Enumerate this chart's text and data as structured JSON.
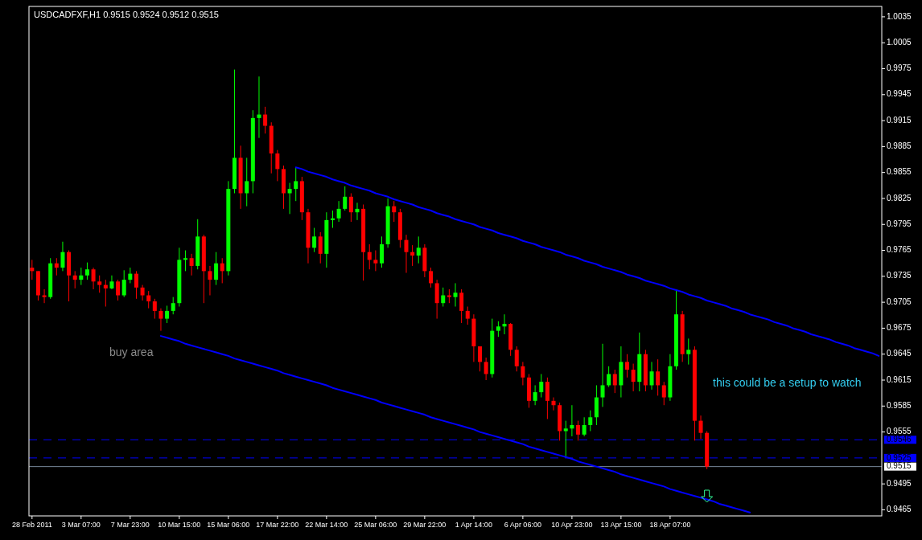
{
  "chart_data": {
    "type": "candlestick",
    "title": "USDCADFXF,H1 0.9515 0.9524 0.9512 0.9515",
    "categories": [
      "28 Feb 2011",
      null,
      null,
      null,
      null,
      null,
      null,
      null,
      "3 Mar 07:00",
      null,
      null,
      null,
      null,
      null,
      null,
      null,
      "7 Mar 23:00",
      null,
      null,
      null,
      null,
      null,
      null,
      null,
      "10 Mar 15:00",
      null,
      null,
      null,
      null,
      null,
      null,
      null,
      "15 Mar 06:00",
      null,
      null,
      null,
      null,
      null,
      null,
      null,
      "17 Mar 22:00",
      null,
      null,
      null,
      null,
      null,
      null,
      null,
      "22 Mar 14:00",
      null,
      null,
      null,
      null,
      null,
      null,
      null,
      "25 Mar 06:00",
      null,
      null,
      null,
      null,
      null,
      null,
      null,
      "29 Mar 22:00",
      null,
      null,
      null,
      null,
      null,
      null,
      null,
      "1 Apr 14:00",
      null,
      null,
      null,
      null,
      null,
      null,
      null,
      "6 Apr 06:00",
      null,
      null,
      null,
      null,
      null,
      null,
      null,
      "10 Apr 23:00",
      null,
      null,
      null,
      null,
      null,
      null,
      null,
      "13 Apr 15:00",
      null,
      null,
      null,
      null,
      null,
      null,
      null,
      "18 Apr 07:00",
      null,
      null,
      null,
      null,
      null,
      null,
      null,
      null,
      null,
      null,
      null,
      null,
      null,
      null,
      null,
      null,
      null,
      null,
      null,
      null,
      null,
      null,
      null,
      null,
      null,
      null,
      null,
      null,
      null,
      null,
      null,
      null,
      null,
      null
    ],
    "ohlc": [
      [
        0.9745,
        0.9754,
        0.9731,
        0.9741
      ],
      [
        0.9741,
        0.9741,
        0.9707,
        0.9713
      ],
      [
        0.9713,
        0.972,
        0.9704,
        0.9711
      ],
      [
        0.9711,
        0.9756,
        0.9709,
        0.975
      ],
      [
        0.975,
        0.9756,
        0.9736,
        0.9745
      ],
      [
        0.9745,
        0.9775,
        0.9741,
        0.9763
      ],
      [
        0.9763,
        0.9765,
        0.9706,
        0.9736
      ],
      [
        0.9736,
        0.9741,
        0.9721,
        0.9731
      ],
      [
        0.9731,
        0.9745,
        0.9725,
        0.9736
      ],
      [
        0.9736,
        0.9751,
        0.9731,
        0.9743
      ],
      [
        0.9743,
        0.9745,
        0.972,
        0.9729
      ],
      [
        0.9729,
        0.9736,
        0.9716,
        0.9725
      ],
      [
        0.9725,
        0.9731,
        0.97,
        0.9721
      ],
      [
        0.9721,
        0.9736,
        0.972,
        0.9729
      ],
      [
        0.9729,
        0.9731,
        0.9707,
        0.9713
      ],
      [
        0.9713,
        0.9742,
        0.9711,
        0.9731
      ],
      [
        0.9731,
        0.9745,
        0.9727,
        0.9738
      ],
      [
        0.9738,
        0.9741,
        0.9709,
        0.9722
      ],
      [
        0.9722,
        0.9725,
        0.9707,
        0.9713
      ],
      [
        0.9713,
        0.9718,
        0.9698,
        0.9706
      ],
      [
        0.9706,
        0.9709,
        0.9686,
        0.9695
      ],
      [
        0.9695,
        0.9698,
        0.9672,
        0.9686
      ],
      [
        0.9686,
        0.9701,
        0.9681,
        0.9695
      ],
      [
        0.9695,
        0.9711,
        0.9691,
        0.9704
      ],
      [
        0.9704,
        0.9768,
        0.97,
        0.9754
      ],
      [
        0.9754,
        0.9765,
        0.9741,
        0.9756
      ],
      [
        0.9756,
        0.9761,
        0.9736,
        0.9747
      ],
      [
        0.9747,
        0.9801,
        0.9743,
        0.9781
      ],
      [
        0.9781,
        0.9783,
        0.9704,
        0.9741
      ],
      [
        0.9741,
        0.9747,
        0.9713,
        0.9731
      ],
      [
        0.9731,
        0.9763,
        0.9725,
        0.975
      ],
      [
        0.975,
        0.9756,
        0.9727,
        0.9741
      ],
      [
        0.9741,
        0.9845,
        0.9736,
        0.9836
      ],
      [
        0.9836,
        0.9974,
        0.9831,
        0.9872
      ],
      [
        0.9872,
        0.9886,
        0.9813,
        0.9831
      ],
      [
        0.9831,
        0.9872,
        0.9816,
        0.9845
      ],
      [
        0.9845,
        0.9927,
        0.9831,
        0.9918
      ],
      [
        0.9918,
        0.9966,
        0.9895,
        0.9922
      ],
      [
        0.9922,
        0.9931,
        0.99,
        0.9909
      ],
      [
        0.9909,
        0.9913,
        0.9854,
        0.9877
      ],
      [
        0.9877,
        0.9881,
        0.9845,
        0.9859
      ],
      [
        0.9859,
        0.9863,
        0.9813,
        0.9831
      ],
      [
        0.9831,
        0.9843,
        0.9807,
        0.9836
      ],
      [
        0.9836,
        0.9861,
        0.9822,
        0.9845
      ],
      [
        0.9845,
        0.985,
        0.98,
        0.9809
      ],
      [
        0.9809,
        0.9813,
        0.975,
        0.9768
      ],
      [
        0.9768,
        0.9791,
        0.9763,
        0.9781
      ],
      [
        0.9781,
        0.9786,
        0.975,
        0.9761
      ],
      [
        0.9761,
        0.9809,
        0.9745,
        0.98
      ],
      [
        0.98,
        0.9811,
        0.9791,
        0.9802
      ],
      [
        0.9802,
        0.9822,
        0.9798,
        0.9813
      ],
      [
        0.9813,
        0.9839,
        0.9811,
        0.9827
      ],
      [
        0.9827,
        0.9831,
        0.9798,
        0.9809
      ],
      [
        0.9809,
        0.982,
        0.98,
        0.9813
      ],
      [
        0.9813,
        0.9818,
        0.973,
        0.9763
      ],
      [
        0.9763,
        0.9772,
        0.9743,
        0.9754
      ],
      [
        0.9754,
        0.9765,
        0.9741,
        0.975
      ],
      [
        0.975,
        0.9781,
        0.9745,
        0.9772
      ],
      [
        0.9772,
        0.9825,
        0.9768,
        0.9816
      ],
      [
        0.9816,
        0.9822,
        0.9798,
        0.9809
      ],
      [
        0.9809,
        0.9813,
        0.9768,
        0.9777
      ],
      [
        0.9777,
        0.9783,
        0.9739,
        0.9763
      ],
      [
        0.9763,
        0.9771,
        0.9747,
        0.9759
      ],
      [
        0.9759,
        0.9781,
        0.975,
        0.9768
      ],
      [
        0.9768,
        0.9772,
        0.9734,
        0.9741
      ],
      [
        0.9741,
        0.9745,
        0.9722,
        0.9727
      ],
      [
        0.9727,
        0.9731,
        0.9686,
        0.9704
      ],
      [
        0.9704,
        0.9722,
        0.97,
        0.9713
      ],
      [
        0.9713,
        0.972,
        0.9704,
        0.9711
      ],
      [
        0.9711,
        0.9727,
        0.97,
        0.9716
      ],
      [
        0.9716,
        0.972,
        0.9681,
        0.9695
      ],
      [
        0.9695,
        0.97,
        0.9679,
        0.9686
      ],
      [
        0.9686,
        0.9691,
        0.9636,
        0.9654
      ],
      [
        0.9654,
        0.9654,
        0.9625,
        0.9636
      ],
      [
        0.9636,
        0.9641,
        0.9615,
        0.9622
      ],
      [
        0.9622,
        0.9686,
        0.9618,
        0.9672
      ],
      [
        0.9672,
        0.9683,
        0.9665,
        0.9677
      ],
      [
        0.9677,
        0.9691,
        0.9668,
        0.968
      ],
      [
        0.968,
        0.9681,
        0.9643,
        0.965
      ],
      [
        0.965,
        0.9654,
        0.9625,
        0.9631
      ],
      [
        0.9631,
        0.9636,
        0.9609,
        0.9618
      ],
      [
        0.9618,
        0.9622,
        0.9583,
        0.9591
      ],
      [
        0.9591,
        0.9609,
        0.9586,
        0.9601
      ],
      [
        0.9601,
        0.9622,
        0.9595,
        0.9613
      ],
      [
        0.9613,
        0.9618,
        0.957,
        0.9591
      ],
      [
        0.9591,
        0.9595,
        0.958,
        0.9586
      ],
      [
        0.9586,
        0.9589,
        0.9545,
        0.9556
      ],
      [
        0.9556,
        0.9568,
        0.9525,
        0.9559
      ],
      [
        0.9559,
        0.9586,
        0.955,
        0.9563
      ],
      [
        0.9563,
        0.9568,
        0.9545,
        0.9552
      ],
      [
        0.9552,
        0.9572,
        0.955,
        0.9563
      ],
      [
        0.9563,
        0.958,
        0.9556,
        0.9572
      ],
      [
        0.9572,
        0.9609,
        0.9563,
        0.9595
      ],
      [
        0.9595,
        0.9657,
        0.9584,
        0.9609
      ],
      [
        0.9609,
        0.9631,
        0.9607,
        0.9622
      ],
      [
        0.9622,
        0.9627,
        0.96,
        0.9609
      ],
      [
        0.9609,
        0.9654,
        0.9595,
        0.9636
      ],
      [
        0.9636,
        0.9645,
        0.9618,
        0.9627
      ],
      [
        0.9627,
        0.9634,
        0.9602,
        0.9613
      ],
      [
        0.9613,
        0.967,
        0.9602,
        0.9645
      ],
      [
        0.9645,
        0.965,
        0.9602,
        0.9609
      ],
      [
        0.9609,
        0.9636,
        0.9604,
        0.9625
      ],
      [
        0.9625,
        0.9639,
        0.9597,
        0.9609
      ],
      [
        0.9609,
        0.9613,
        0.9586,
        0.9595
      ],
      [
        0.9595,
        0.9645,
        0.9591,
        0.9631
      ],
      [
        0.9631,
        0.972,
        0.9627,
        0.9691
      ],
      [
        0.9691,
        0.9695,
        0.9636,
        0.9645
      ],
      [
        0.9645,
        0.9663,
        0.9633,
        0.965
      ],
      [
        0.965,
        0.9654,
        0.9545,
        0.9568
      ],
      [
        0.9568,
        0.9574,
        0.9547,
        0.9554
      ],
      [
        0.9554,
        0.9556,
        0.9512,
        0.9515
      ],
      null,
      null,
      null,
      null,
      null,
      null,
      null,
      null,
      null,
      null,
      null,
      null,
      null,
      null,
      null,
      null,
      null,
      null,
      null,
      null,
      null,
      null,
      null,
      null,
      null,
      null,
      null,
      null
    ],
    "colors": [
      "#ff0000",
      "#ff0000",
      "#ff0000",
      "#00ff00",
      "#ff0000",
      "#00ff00",
      "#ff0000",
      "#ff0000",
      "#00ff00",
      "#00ff00",
      "#ff0000",
      "#ff0000",
      "#ff0000",
      "#00ff00",
      "#ff0000",
      "#00ff00",
      "#00ff00",
      "#ff0000",
      "#ff0000",
      "#ff0000",
      "#ff0000",
      "#ff0000",
      "#00ff00",
      "#00ff00",
      "#00ff00",
      "#00ff00",
      "#ff0000",
      "#00ff00",
      "#ff0000",
      "#ff0000",
      "#00ff00",
      "#ff0000",
      "#00ff00",
      "#00ff00",
      "#ff0000",
      "#00ff00",
      "#00ff00",
      "#00ff00",
      "#ff0000",
      "#ff0000",
      "#ff0000",
      "#ff0000",
      "#00ff00",
      "#00ff00",
      "#ff0000",
      "#ff0000",
      "#00ff00",
      "#ff0000",
      "#00ff00",
      "#00ff00",
      "#00ff00",
      "#00ff00",
      "#ff0000",
      "#00ff00",
      "#ff0000",
      "#ff0000",
      "#ff0000",
      "#00ff00",
      "#00ff00",
      "#ff0000",
      "#ff0000",
      "#ff0000",
      "#ff0000",
      "#00ff00",
      "#ff0000",
      "#ff0000",
      "#ff0000",
      "#00ff00",
      "#ff0000",
      "#00ff00",
      "#ff0000",
      "#ff0000",
      "#ff0000",
      "#ff0000",
      "#ff0000",
      "#00ff00",
      "#00ff00",
      "#00ff00",
      "#ff0000",
      "#ff0000",
      "#ff0000",
      "#ff0000",
      "#00ff00",
      "#00ff00",
      "#ff0000",
      "#ff0000",
      "#ff0000",
      "#00ff00",
      "#00ff00",
      "#ff0000",
      "#00ff00",
      "#00ff00",
      "#00ff00",
      "#00ff00",
      "#00ff00",
      "#ff0000",
      "#00ff00",
      "#ff0000",
      "#ff0000",
      "#00ff00",
      "#ff0000",
      "#00ff00",
      "#ff0000",
      "#ff0000",
      "#00ff00",
      "#00ff00",
      "#ff0000",
      "#00ff00",
      "#ff0000",
      "#ff0000",
      "#ff0000",
      null,
      null,
      null,
      null,
      null,
      null,
      null,
      null,
      null,
      null,
      null,
      null,
      null,
      null,
      null,
      null,
      null,
      null,
      null,
      null,
      null,
      null,
      null,
      null,
      null,
      null,
      null,
      null
    ],
    "series": [
      {
        "type": "line",
        "color": "#0000ff",
        "values": [
          null,
          null,
          null,
          null,
          null,
          null,
          null,
          null,
          null,
          null,
          null,
          null,
          null,
          null,
          null,
          null,
          null,
          null,
          null,
          null,
          null,
          null,
          null,
          null,
          null,
          null,
          null,
          null,
          null,
          null,
          null,
          null,
          null,
          null,
          null,
          null,
          null,
          null,
          null,
          null,
          null,
          null,
          null,
          0.9861,
          0.9859,
          0.9856,
          0.9854,
          0.9852,
          0.985,
          0.9847,
          0.9845,
          0.9843,
          0.984,
          0.9838,
          0.9836,
          0.9834,
          0.9831,
          0.9829,
          0.9827,
          0.9824,
          0.9822,
          0.982,
          0.9818,
          0.9815,
          0.9813,
          0.9811,
          0.9808,
          0.9806,
          0.9804,
          0.9801,
          0.9799,
          0.9797,
          0.9795,
          0.9792,
          0.979,
          0.9788,
          0.9785,
          0.9783,
          0.9781,
          0.9779,
          0.9776,
          0.9774,
          0.9772,
          0.9769,
          0.9767,
          0.9765,
          0.9763,
          0.976,
          0.9758,
          0.9756,
          0.9753,
          0.9751,
          0.9749,
          0.9746,
          0.9744,
          0.9742,
          0.974,
          0.9737,
          0.9735,
          0.9733,
          0.973,
          0.9728,
          0.9726,
          0.9724,
          0.9721,
          0.9719,
          0.9717,
          0.9714,
          0.9712,
          0.971,
          0.9707,
          0.9705,
          0.9703,
          0.9701,
          0.9698,
          0.9696,
          0.9694,
          0.9691,
          0.9689,
          0.9687,
          0.9685,
          0.9682,
          0.968,
          0.9678,
          0.9675,
          0.9673,
          0.9671,
          0.9668,
          0.9666,
          0.9664,
          0.9662,
          0.9659,
          0.9657,
          0.9655,
          0.9652,
          0.965,
          0.9648,
          0.9646,
          0.9643
        ]
      },
      {
        "type": "line",
        "color": "#0000ff",
        "values": [
          null,
          null,
          null,
          null,
          null,
          null,
          null,
          null,
          null,
          null,
          null,
          null,
          null,
          null,
          null,
          null,
          null,
          null,
          null,
          null,
          null,
          0.9666,
          0.9664,
          0.9662,
          0.966,
          0.9657,
          0.9655,
          0.9653,
          0.9651,
          0.9649,
          0.9647,
          0.9645,
          0.9643,
          0.964,
          0.9638,
          0.9636,
          0.9634,
          0.9632,
          0.963,
          0.9628,
          0.9626,
          0.9623,
          0.9621,
          0.9619,
          0.9617,
          0.9615,
          0.9613,
          0.9611,
          0.9609,
          0.9606,
          0.9604,
          0.9602,
          0.96,
          0.9598,
          0.9596,
          0.9594,
          0.9592,
          0.9589,
          0.9587,
          0.9585,
          0.9583,
          0.9581,
          0.9579,
          0.9577,
          0.9575,
          0.9572,
          0.957,
          0.9568,
          0.9566,
          0.9564,
          0.9562,
          0.956,
          0.9558,
          0.9555,
          0.9553,
          0.9551,
          0.9549,
          0.9547,
          0.9545,
          0.9543,
          0.9541,
          0.9538,
          0.9536,
          0.9534,
          0.9532,
          0.953,
          0.9528,
          0.9526,
          0.9524,
          0.9521,
          0.9519,
          0.9517,
          0.9515,
          0.9513,
          0.9511,
          0.9509,
          0.9506,
          0.9504,
          0.9502,
          0.95,
          0.9498,
          0.9496,
          0.9494,
          0.9492,
          0.9489,
          0.9487,
          0.9485,
          0.9483,
          0.9481,
          0.9479,
          0.9477,
          0.9475,
          0.9472,
          0.947,
          0.9468,
          0.9466,
          0.9464,
          0.9462,
          null,
          null,
          null,
          null,
          null,
          null,
          null,
          null,
          null,
          null,
          null,
          null,
          null,
          null,
          null,
          null,
          null,
          null,
          null,
          null,
          null
        ]
      }
    ],
    "ylim": [
      0.9458,
      1.0047
    ],
    "yticks": [
      0.9465,
      0.9495,
      0.9555,
      0.9585,
      0.9615,
      0.9645,
      0.9675,
      0.9705,
      0.9735,
      0.9765,
      0.9795,
      0.9825,
      0.9855,
      0.9885,
      0.9915,
      0.9945,
      0.9975,
      1.0005,
      1.0035
    ],
    "ref_lines": [
      {
        "axis": "y",
        "value": 0.9546,
        "label": "0.9546",
        "color": "#0000ff",
        "line_style": "dashed"
      },
      {
        "axis": "y",
        "value": 0.9525,
        "label": "0.9525",
        "color": "#0000ff",
        "line_style": "dashed"
      },
      {
        "axis": "y",
        "value": 0.9515,
        "label": "0.9515",
        "color": "#778899",
        "line_style": "solid"
      }
    ],
    "annotations": [
      "buy area",
      "this could be a setup to watch"
    ]
  }
}
